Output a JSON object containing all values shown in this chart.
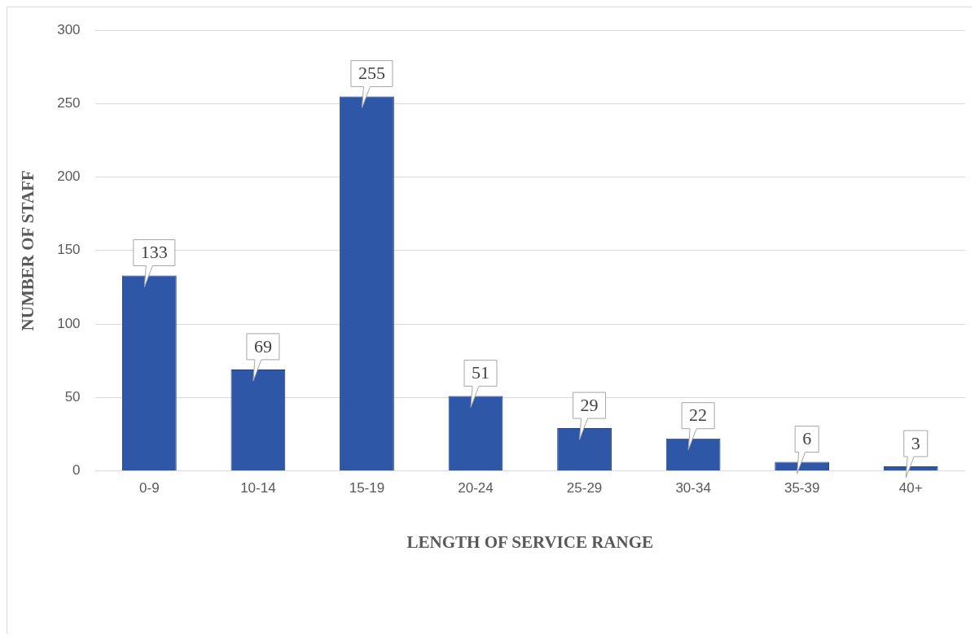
{
  "chart_data": {
    "type": "bar",
    "xlabel": "LENGTH OF SERVICE RANGE",
    "ylabel": "NUMBER OF STAFF",
    "categories": [
      "0-9",
      "10-14",
      "15-19",
      "20-24",
      "25-29",
      "30-34",
      "35-39",
      "40+"
    ],
    "values": [
      133,
      69,
      255,
      51,
      29,
      22,
      6,
      3
    ],
    "color": "#2f57a8",
    "ylim": [
      0,
      300
    ],
    "yticks": [
      0,
      50,
      100,
      150,
      200,
      250,
      300
    ],
    "grid": "y",
    "data_labels": true,
    "legend": false
  }
}
